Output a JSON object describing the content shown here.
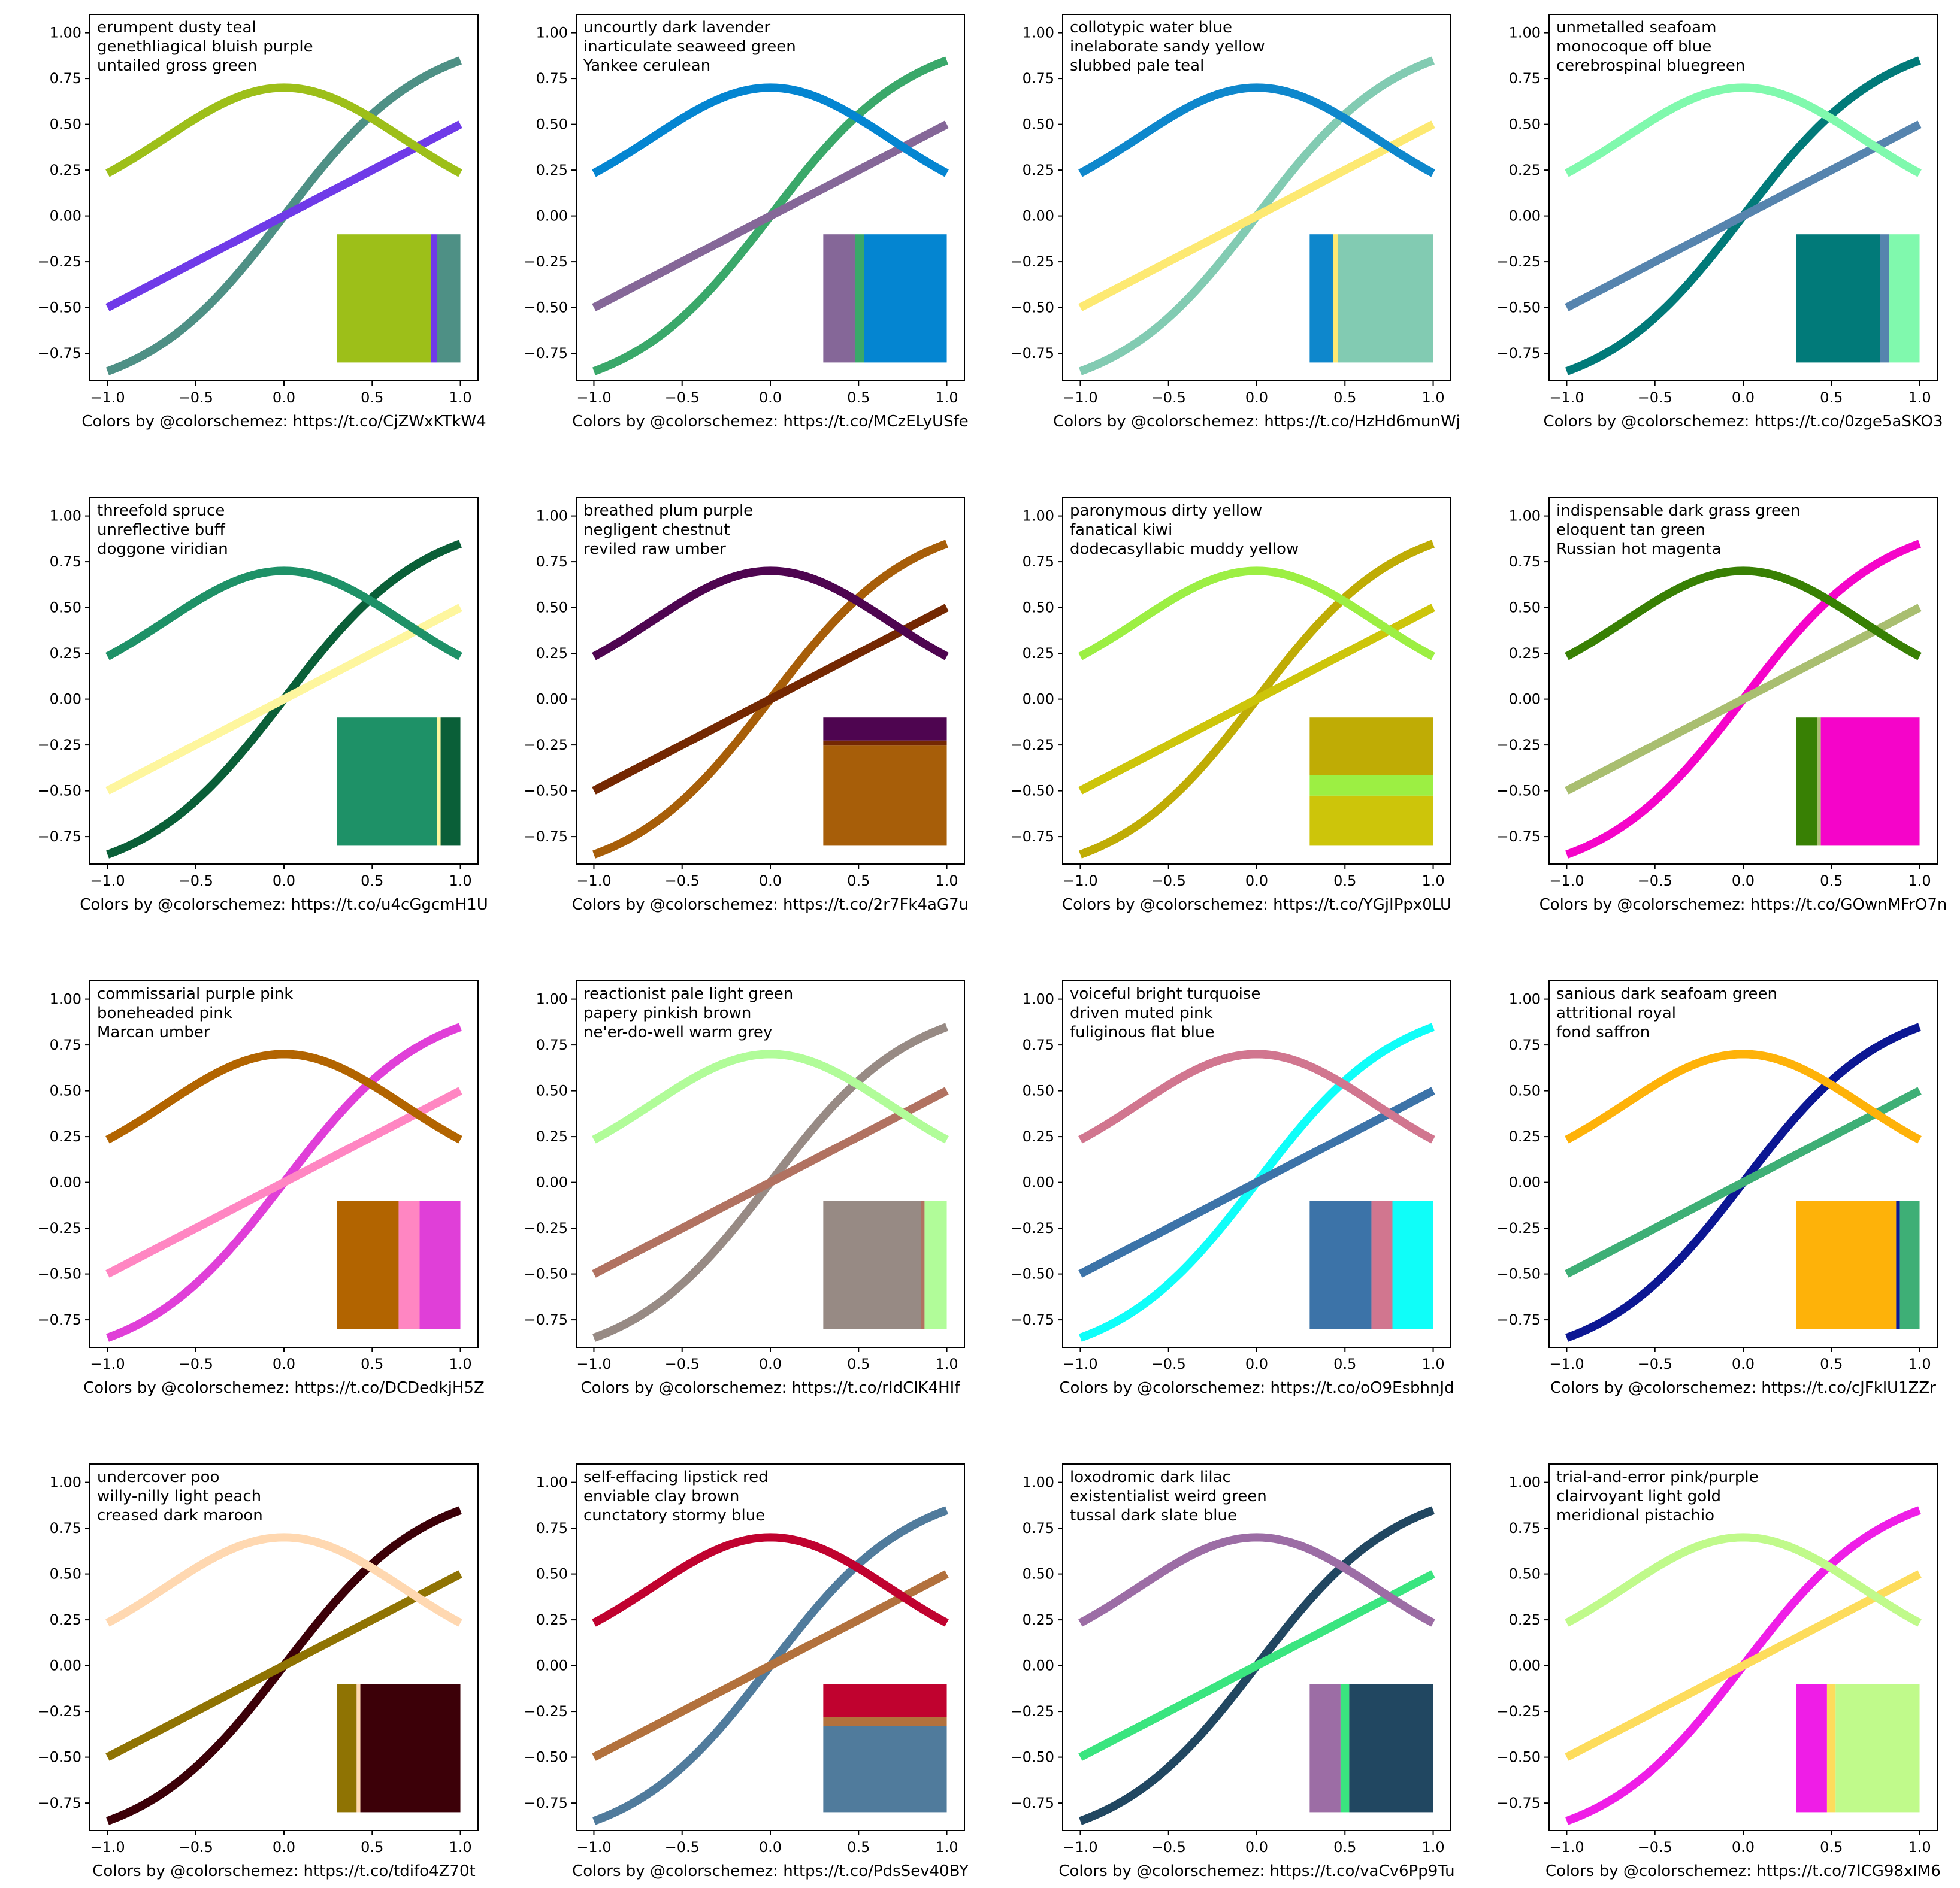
{
  "chart_data": [
    {
      "type": "line",
      "names": [
        "erumpent dusty teal",
        "genethliagical bluish purple",
        "untailed gross green"
      ],
      "colors": {
        "sigmoid": "#4e9085",
        "linear": "#6f3ae8",
        "bell": "#9dbf19"
      },
      "bar_segments": [
        {
          "color": "#9dbf19",
          "fraction": 0.76
        },
        {
          "color": "#6f3ae8",
          "fraction": 0.05
        },
        {
          "color": "#4e9085",
          "fraction": 0.19
        }
      ],
      "bar_orientation": "horizontal",
      "caption": "Colors by @colorschemez: https://t.co/CjZWxKTkW4"
    },
    {
      "type": "line",
      "names": [
        "uncourtly dark lavender",
        "inarticulate seaweed green",
        "Yankee cerulean"
      ],
      "colors": {
        "sigmoid": "#3aa86a",
        "linear": "#856798",
        "bell": "#0485d1"
      },
      "bar_segments": [
        {
          "color": "#856798",
          "fraction": 0.26
        },
        {
          "color": "#3aa86a",
          "fraction": 0.07
        },
        {
          "color": "#0485d1",
          "fraction": 0.67
        }
      ],
      "bar_orientation": "horizontal",
      "caption": "Colors by @colorschemez: https://t.co/MCzELyUSfe"
    },
    {
      "type": "line",
      "names": [
        "collotypic water blue",
        "inelaborate sandy yellow",
        "slubbed pale teal"
      ],
      "colors": {
        "sigmoid": "#82cbb2",
        "linear": "#fde972",
        "bell": "#0e87cc"
      },
      "bar_segments": [
        {
          "color": "#0e87cc",
          "fraction": 0.19
        },
        {
          "color": "#fde972",
          "fraction": 0.04
        },
        {
          "color": "#82cbb2",
          "fraction": 0.77
        }
      ],
      "bar_orientation": "horizontal",
      "caption": "Colors by @colorschemez: https://t.co/HzHd6munWj"
    },
    {
      "type": "line",
      "names": [
        "unmetalled seafoam",
        "monocoque off blue",
        "cerebrospinal bluegreen"
      ],
      "colors": {
        "sigmoid": "#017a79",
        "linear": "#5684ae",
        "bell": "#80f9ad"
      },
      "bar_segments": [
        {
          "color": "#017a79",
          "fraction": 0.68
        },
        {
          "color": "#5684ae",
          "fraction": 0.07
        },
        {
          "color": "#80f9ad",
          "fraction": 0.25
        }
      ],
      "bar_orientation": "horizontal",
      "caption": "Colors by @colorschemez: https://t.co/0zge5aSKO3"
    },
    {
      "type": "line",
      "names": [
        "threefold spruce",
        "unreflective buff",
        "doggone viridian"
      ],
      "colors": {
        "sigmoid": "#0a5f38",
        "linear": "#fef69e",
        "bell": "#1e9167"
      },
      "bar_segments": [
        {
          "color": "#1e9167",
          "fraction": 0.81
        },
        {
          "color": "#fef69e",
          "fraction": 0.03
        },
        {
          "color": "#0a5f38",
          "fraction": 0.16
        }
      ],
      "bar_orientation": "horizontal",
      "caption": "Colors by @colorschemez: https://t.co/u4cGgcmH1U"
    },
    {
      "type": "line",
      "names": [
        "breathed plum purple",
        "negligent chestnut",
        "reviled raw umber"
      ],
      "colors": {
        "sigmoid": "#a75e09",
        "linear": "#742802",
        "bell": "#4e0550"
      },
      "bar_segments": [
        {
          "color": "#4e0550",
          "fraction": 0.18
        },
        {
          "color": "#742802",
          "fraction": 0.04
        },
        {
          "color": "#a75e09",
          "fraction": 0.78
        }
      ],
      "bar_orientation": "vertical",
      "caption": "Colors by @colorschemez: https://t.co/2r7Fk4aG7u"
    },
    {
      "type": "line",
      "names": [
        "paronymous dirty yellow",
        "fanatical kiwi",
        "dodecasyllabic muddy yellow"
      ],
      "colors": {
        "sigmoid": "#bfac05",
        "linear": "#cdc50a",
        "bell": "#9cef43"
      },
      "bar_segments": [
        {
          "color": "#bfac05",
          "fraction": 0.45
        },
        {
          "color": "#9cef43",
          "fraction": 0.16
        },
        {
          "color": "#cdc50a",
          "fraction": 0.39
        }
      ],
      "bar_orientation": "vertical",
      "caption": "Colors by @colorschemez: https://t.co/YGjIPpx0LU"
    },
    {
      "type": "line",
      "names": [
        "indispensable dark grass green",
        "eloquent tan green",
        "Russian hot magenta"
      ],
      "colors": {
        "sigmoid": "#f504c9",
        "linear": "#a9be70",
        "bell": "#388004"
      },
      "bar_segments": [
        {
          "color": "#388004",
          "fraction": 0.17
        },
        {
          "color": "#a9be70",
          "fraction": 0.03
        },
        {
          "color": "#f504c9",
          "fraction": 0.8
        }
      ],
      "bar_orientation": "horizontal",
      "caption": "Colors by @colorschemez: https://t.co/GOwnMFrO7n"
    },
    {
      "type": "line",
      "names": [
        "commissarial purple pink",
        "boneheaded pink",
        "Marcan umber"
      ],
      "colors": {
        "sigmoid": "#e03fd8",
        "linear": "#ff86c2",
        "bell": "#b26400"
      },
      "bar_segments": [
        {
          "color": "#b26400",
          "fraction": 0.5
        },
        {
          "color": "#ff86c2",
          "fraction": 0.17
        },
        {
          "color": "#e03fd8",
          "fraction": 0.33
        }
      ],
      "bar_orientation": "horizontal",
      "caption": "Colors by @colorschemez: https://t.co/DCDedkjH5Z"
    },
    {
      "type": "line",
      "names": [
        "reactionist pale light green",
        "papery pinkish brown",
        "ne'er-do-well warm grey"
      ],
      "colors": {
        "sigmoid": "#978a84",
        "linear": "#b17261",
        "bell": "#b1fc99"
      },
      "bar_segments": [
        {
          "color": "#978a84",
          "fraction": 0.79
        },
        {
          "color": "#b17261",
          "fraction": 0.03
        },
        {
          "color": "#b1fc99",
          "fraction": 0.18
        }
      ],
      "bar_orientation": "horizontal",
      "caption": "Colors by @colorschemez: https://t.co/rIdClK4HIf"
    },
    {
      "type": "line",
      "names": [
        "voiceful bright turquoise",
        "driven muted pink",
        "fuliginous flat blue"
      ],
      "colors": {
        "sigmoid": "#0ffef9",
        "linear": "#3c73a8",
        "bell": "#d1768f"
      },
      "bar_segments": [
        {
          "color": "#3c73a8",
          "fraction": 0.5
        },
        {
          "color": "#d1768f",
          "fraction": 0.17
        },
        {
          "color": "#0ffef9",
          "fraction": 0.33
        }
      ],
      "bar_orientation": "horizontal",
      "caption": "Colors by @colorschemez: https://t.co/oO9EsbhnJd"
    },
    {
      "type": "line",
      "names": [
        "sanious dark seafoam green",
        "attritional royal",
        "fond saffron"
      ],
      "colors": {
        "sigmoid": "#0c1793",
        "linear": "#3eaf76",
        "bell": "#feb209"
      },
      "bar_segments": [
        {
          "color": "#feb209",
          "fraction": 0.81
        },
        {
          "color": "#0c1793",
          "fraction": 0.03
        },
        {
          "color": "#3eaf76",
          "fraction": 0.16
        }
      ],
      "bar_orientation": "horizontal",
      "caption": "Colors by @colorschemez: https://t.co/cJFklU1ZZr"
    },
    {
      "type": "line",
      "names": [
        "undercover poo",
        "willy-nilly light peach",
        "creased dark maroon"
      ],
      "colors": {
        "sigmoid": "#3c0008",
        "linear": "#8f7303",
        "bell": "#ffd8b1"
      },
      "bar_segments": [
        {
          "color": "#8f7303",
          "fraction": 0.16
        },
        {
          "color": "#ffd8b1",
          "fraction": 0.03
        },
        {
          "color": "#3c0008",
          "fraction": 0.81
        }
      ],
      "bar_orientation": "horizontal",
      "caption": "Colors by @colorschemez: https://t.co/tdifo4Z70t"
    },
    {
      "type": "line",
      "names": [
        "self-effacing lipstick red",
        "enviable clay brown",
        "cunctatory stormy blue"
      ],
      "colors": {
        "sigmoid": "#507b9c",
        "linear": "#b2713d",
        "bell": "#c0022f"
      },
      "bar_segments": [
        {
          "color": "#c0022f",
          "fraction": 0.26
        },
        {
          "color": "#b2713d",
          "fraction": 0.07
        },
        {
          "color": "#507b9c",
          "fraction": 0.67
        }
      ],
      "bar_orientation": "vertical",
      "caption": "Colors by @colorschemez: https://t.co/PdsSev40BY"
    },
    {
      "type": "line",
      "names": [
        "loxodromic dark lilac",
        "existentialist weird green",
        "tussal dark slate blue"
      ],
      "colors": {
        "sigmoid": "#214761",
        "linear": "#3ae57f",
        "bell": "#9c6da5"
      },
      "bar_segments": [
        {
          "color": "#9c6da5",
          "fraction": 0.25
        },
        {
          "color": "#3ae57f",
          "fraction": 0.07
        },
        {
          "color": "#214761",
          "fraction": 0.68
        }
      ],
      "bar_orientation": "horizontal",
      "caption": "Colors by @colorschemez: https://t.co/vaCv6Pp9Tu"
    },
    {
      "type": "line",
      "names": [
        "trial-and-error pink/purple",
        "clairvoyant light gold",
        "meridional pistachio"
      ],
      "colors": {
        "sigmoid": "#ef1de7",
        "linear": "#fddc5c",
        "bell": "#c0fa8b"
      },
      "bar_segments": [
        {
          "color": "#ef1de7",
          "fraction": 0.25
        },
        {
          "color": "#fddc5c",
          "fraction": 0.07
        },
        {
          "color": "#c0fa8b",
          "fraction": 0.68
        }
      ],
      "bar_orientation": "horizontal",
      "caption": "Colors by @colorschemez: https://t.co/7lCG98xIM6"
    }
  ],
  "axes": {
    "xlim": [
      -1.1,
      1.1
    ],
    "ylim": [
      -0.9,
      1.1
    ],
    "xticks": [
      -1.0,
      -0.5,
      0.0,
      0.5,
      1.0
    ],
    "xtick_labels": [
      "−1.0",
      "−0.5",
      "0.0",
      "0.5",
      "1.0"
    ],
    "yticks": [
      -0.75,
      -0.5,
      -0.25,
      0.0,
      0.25,
      0.5,
      0.75,
      1.0
    ],
    "ytick_labels": [
      "−0.75",
      "−0.50",
      "−0.25",
      "0.00",
      "0.25",
      "0.50",
      "0.75",
      "1.00"
    ],
    "grid": false,
    "legend_placement": "top-left",
    "inset_xlim": [
      0.3,
      1.0
    ],
    "inset_ylim": [
      -0.8,
      -0.1
    ]
  }
}
